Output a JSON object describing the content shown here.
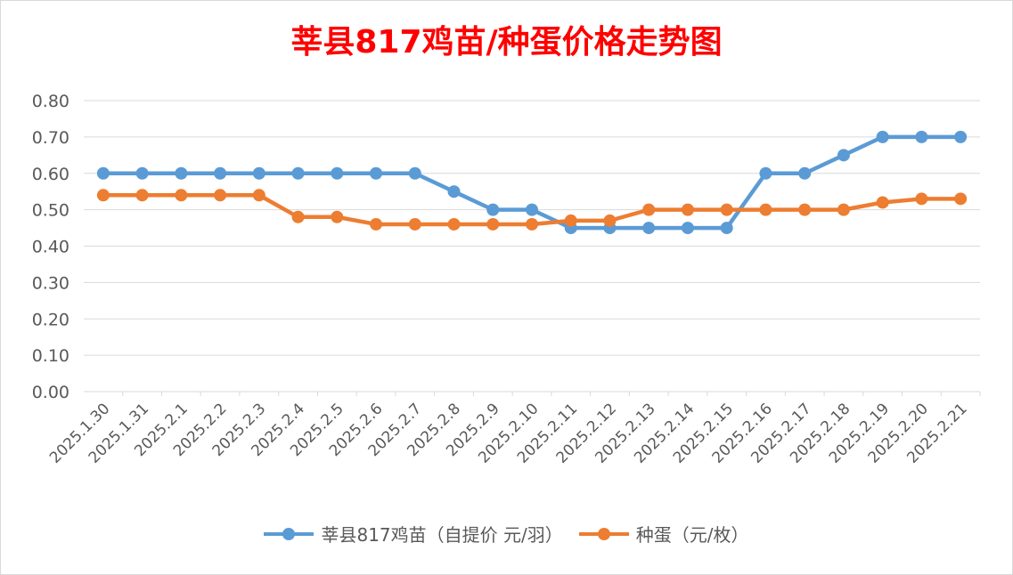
{
  "chart_data": {
    "type": "line",
    "title": "莘县817鸡苗/种蛋价格走势图",
    "title_color": "#ff0000",
    "categories": [
      "2025.1.30",
      "2025.1.31",
      "2025.2.1",
      "2025.2.2",
      "2025.2.3",
      "2025.2.4",
      "2025.2.5",
      "2025.2.6",
      "2025.2.7",
      "2025.2.8",
      "2025.2.9",
      "2025.2.10",
      "2025.2.11",
      "2025.2.12",
      "2025.2.13",
      "2025.2.14",
      "2025.2.15",
      "2025.2.16",
      "2025.2.17",
      "2025.2.18",
      "2025.2.19",
      "2025.2.20",
      "2025.2.21"
    ],
    "series": [
      {
        "name": "莘县817鸡苗（自提价 元/羽）",
        "color": "#5b9bd5",
        "values": [
          0.6,
          0.6,
          0.6,
          0.6,
          0.6,
          0.6,
          0.6,
          0.6,
          0.6,
          0.55,
          0.5,
          0.5,
          0.45,
          0.45,
          0.45,
          0.45,
          0.45,
          0.6,
          0.6,
          0.65,
          0.7,
          0.7,
          0.7
        ]
      },
      {
        "name": "种蛋（元/枚）",
        "color": "#ed7d31",
        "values": [
          0.54,
          0.54,
          0.54,
          0.54,
          0.54,
          0.48,
          0.48,
          0.46,
          0.46,
          0.46,
          0.46,
          0.46,
          0.47,
          0.47,
          0.5,
          0.5,
          0.5,
          0.5,
          0.5,
          0.5,
          0.52,
          0.53,
          0.53
        ]
      }
    ],
    "ylim": [
      0,
      0.8
    ],
    "yticks": [
      "0.00",
      "0.10",
      "0.20",
      "0.30",
      "0.40",
      "0.50",
      "0.60",
      "0.70",
      "0.80"
    ],
    "grid": true,
    "legend_position": "bottom"
  }
}
